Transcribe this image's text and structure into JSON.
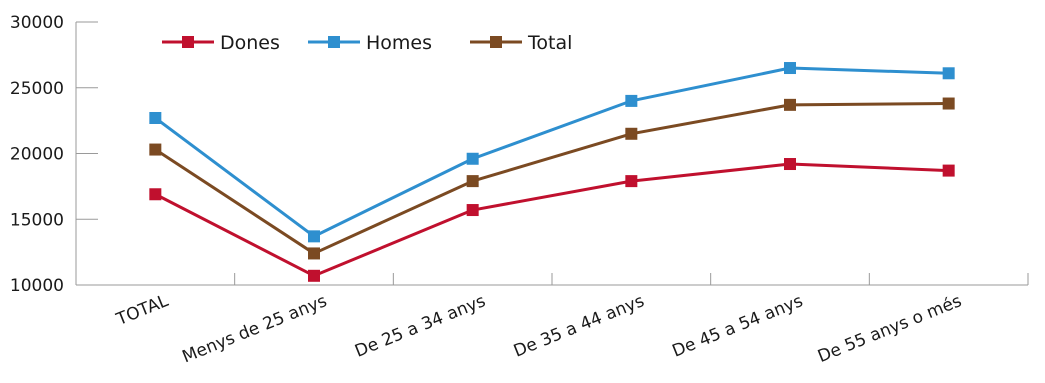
{
  "chart_data": {
    "type": "line",
    "title": "",
    "xlabel": "",
    "ylabel": "",
    "ylim": [
      10000,
      30000
    ],
    "yticks": [
      10000,
      15000,
      20000,
      25000,
      30000
    ],
    "categories": [
      "TOTAL",
      "Menys de 25 anys",
      "De 25 a 34 anys",
      "De 35 a 44 anys",
      "De 45 a 54 anys",
      "De 55 anys o més"
    ],
    "grid": false,
    "legend_position": "top-left",
    "series": [
      {
        "name": "Dones",
        "color": "#c0102e",
        "values": [
          16900,
          10700,
          15700,
          17900,
          19200,
          18700
        ]
      },
      {
        "name": "Homes",
        "color": "#2e8fcf",
        "values": [
          22700,
          13700,
          19600,
          24000,
          26500,
          26100
        ]
      },
      {
        "name": "Total",
        "color": "#7b4a22",
        "values": [
          20300,
          12400,
          17900,
          21500,
          23700,
          23800
        ]
      }
    ]
  }
}
